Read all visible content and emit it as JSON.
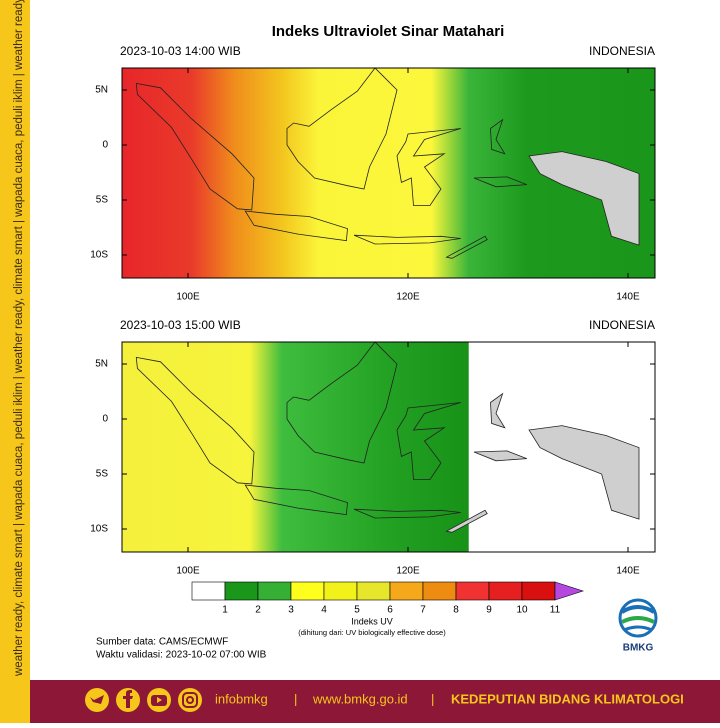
{
  "sidebar_text": "weather ready, climate smart  |  wapada cuaca, peduli iklim  |  weather ready, climate smart  |  wapada cuaca, peduli iklim  |  weather ready, climate smart",
  "title": "Indeks Ultraviolet Sinar Matahari",
  "maps": [
    {
      "time": "2023-10-03  14:00 WIB",
      "region": "INDONESIA"
    },
    {
      "time": "2023-10-03  15:00 WIB",
      "region": "INDONESIA"
    }
  ],
  "lat_labels": [
    "5N",
    "0",
    "5S",
    "10S"
  ],
  "lon_labels": [
    "100E",
    "120E",
    "140E"
  ],
  "colorbar": {
    "ticks": [
      1,
      2,
      3,
      4,
      5,
      6,
      7,
      8,
      9,
      10,
      11
    ],
    "title": "Indeks UV",
    "note": "(dihitung dari: UV biologically effective dose)"
  },
  "source": "Sumber data: CAMS/ECMWF",
  "valid": "Waktu validasi: 2023-10-02 07:00 WIB",
  "logo_text": "BMKG",
  "footer": {
    "handle": "infobmkg",
    "separator": "|",
    "website": "www.bmkg.go.id",
    "unit": "KEDEPUTIAN BIDANG KLIMATOLOGI"
  }
}
